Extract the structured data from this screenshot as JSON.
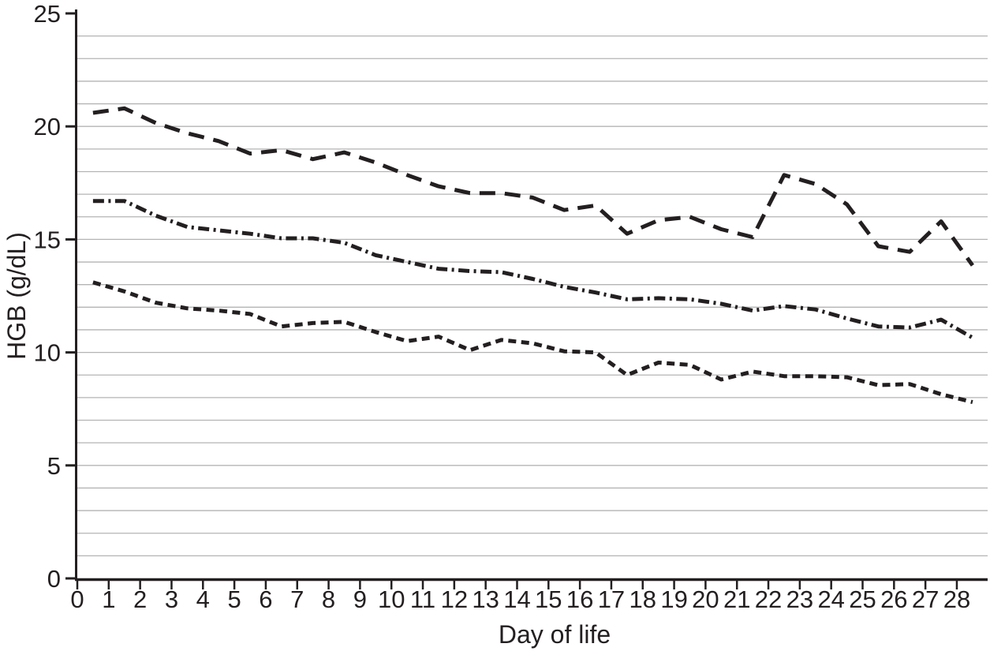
{
  "figure": {
    "x_axis_title": "Day of life",
    "y_axis_title": "HGB (g/dL)"
  },
  "chart_data": {
    "type": "line",
    "title": "",
    "xlabel": "Day of life",
    "ylabel": "HGB (g/dL)",
    "xlim": [
      0,
      29
    ],
    "ylim": [
      0,
      25
    ],
    "x_tick_values": [
      0,
      1,
      2,
      3,
      4,
      5,
      6,
      7,
      8,
      9,
      10,
      11,
      12,
      13,
      14,
      15,
      16,
      17,
      18,
      19,
      20,
      21,
      22,
      23,
      24,
      25,
      26,
      27,
      28
    ],
    "y_tick_values": [
      0,
      5,
      10,
      15,
      20,
      25
    ],
    "grid": "horizontal gridlines every 1 g/dL",
    "legend": "none (series distinguished by dash pattern)",
    "line_color": "#231f20",
    "grid_color": "#b4b4b4",
    "x": [
      0.5,
      1.5,
      2.5,
      3.5,
      4.5,
      5.5,
      6.5,
      7.5,
      8.5,
      9.5,
      10.5,
      11.5,
      12.5,
      13.5,
      14.5,
      15.5,
      16.5,
      17.5,
      18.5,
      19.5,
      20.5,
      21.5,
      22.5,
      23.5,
      24.5,
      25.5,
      26.5,
      27.5,
      28.5
    ],
    "series": [
      {
        "name": "upper-curve-long-dash",
        "dash": "long-dash",
        "values": [
          20.6,
          20.8,
          20.15,
          19.7,
          19.35,
          18.8,
          18.95,
          18.55,
          18.85,
          18.4,
          17.85,
          17.35,
          17.05,
          17.05,
          16.85,
          16.3,
          16.5,
          15.25,
          15.85,
          16.0,
          15.45,
          15.1,
          17.85,
          17.45,
          16.55,
          14.7,
          14.45,
          15.8,
          13.85
        ]
      },
      {
        "name": "middle-curve-dash-dot",
        "dash": "dash-dot",
        "values": [
          16.7,
          16.7,
          16.05,
          15.55,
          15.4,
          15.25,
          15.05,
          15.05,
          14.85,
          14.3,
          14.0,
          13.7,
          13.6,
          13.55,
          13.25,
          12.9,
          12.65,
          12.35,
          12.4,
          12.35,
          12.15,
          11.85,
          12.05,
          11.9,
          11.5,
          11.15,
          11.1,
          11.45,
          10.65
        ]
      },
      {
        "name": "lower-curve-short-dash",
        "dash": "short-dash",
        "values": [
          13.1,
          12.7,
          12.2,
          11.95,
          11.85,
          11.7,
          11.15,
          11.3,
          11.35,
          10.9,
          10.5,
          10.7,
          10.1,
          10.55,
          10.4,
          10.05,
          10.0,
          9.0,
          9.55,
          9.45,
          8.8,
          9.15,
          8.95,
          8.95,
          8.9,
          8.55,
          8.6,
          8.15,
          7.8
        ]
      }
    ]
  }
}
